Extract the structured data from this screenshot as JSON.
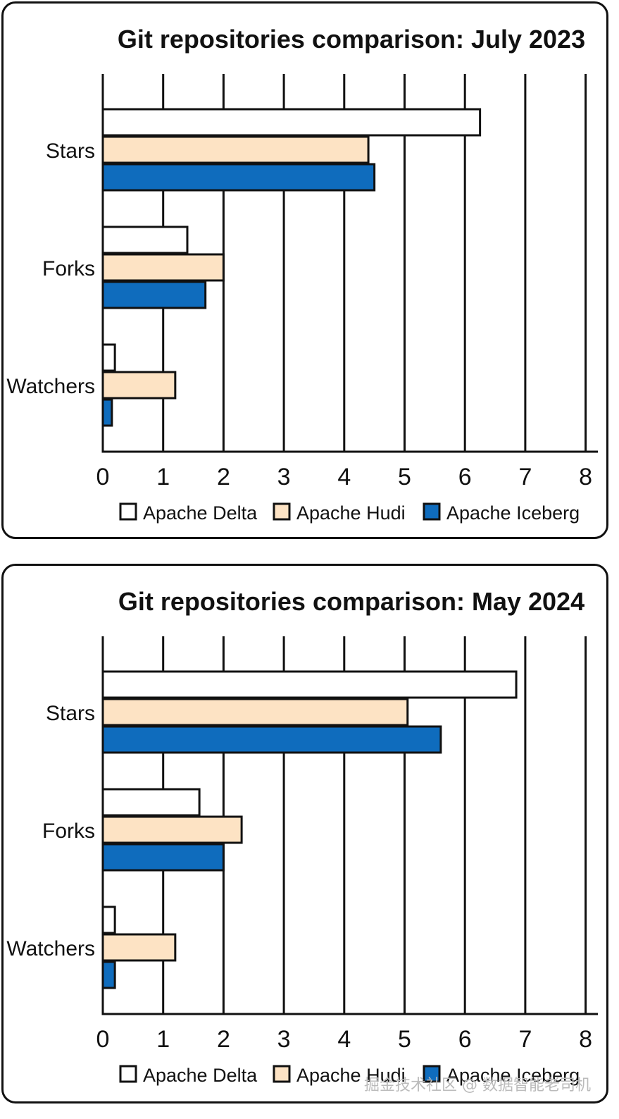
{
  "watermark": "掘金技术社区 @ 数据智能老司机",
  "colors": {
    "Apache Delta": "#ffffff",
    "Apache Hudi": "#fde3c4",
    "Apache Iceberg": "#0f6cbd",
    "stroke": "#111111"
  },
  "chart_data": [
    {
      "type": "bar",
      "orientation": "horizontal",
      "title": "Git repositories comparison: July 2023",
      "categories": [
        "Stars",
        "Forks",
        "Watchers"
      ],
      "series": [
        {
          "name": "Apache Delta",
          "values": [
            6.25,
            1.4,
            0.2
          ]
        },
        {
          "name": "Apache Hudi",
          "values": [
            4.4,
            2.0,
            1.2
          ]
        },
        {
          "name": "Apache Iceberg",
          "values": [
            4.5,
            1.7,
            0.15
          ]
        }
      ],
      "xticks": [
        "0",
        "1",
        "2",
        "3",
        "4",
        "5",
        "6",
        "7",
        "8"
      ],
      "xlim": [
        0,
        8
      ],
      "grid": "vertical",
      "legend": "bottom"
    },
    {
      "type": "bar",
      "orientation": "horizontal",
      "title": "Git repositories comparison: May 2024",
      "categories": [
        "Stars",
        "Forks",
        "Watchers"
      ],
      "series": [
        {
          "name": "Apache Delta",
          "values": [
            6.85,
            1.6,
            0.2
          ]
        },
        {
          "name": "Apache Hudi",
          "values": [
            5.05,
            2.3,
            1.2
          ]
        },
        {
          "name": "Apache Iceberg",
          "values": [
            5.6,
            2.0,
            0.2
          ]
        }
      ],
      "xticks": [
        "0",
        "1",
        "2",
        "3",
        "4",
        "5",
        "6",
        "7",
        "8"
      ],
      "xlim": [
        0,
        8
      ],
      "grid": "vertical",
      "legend": "bottom"
    }
  ]
}
